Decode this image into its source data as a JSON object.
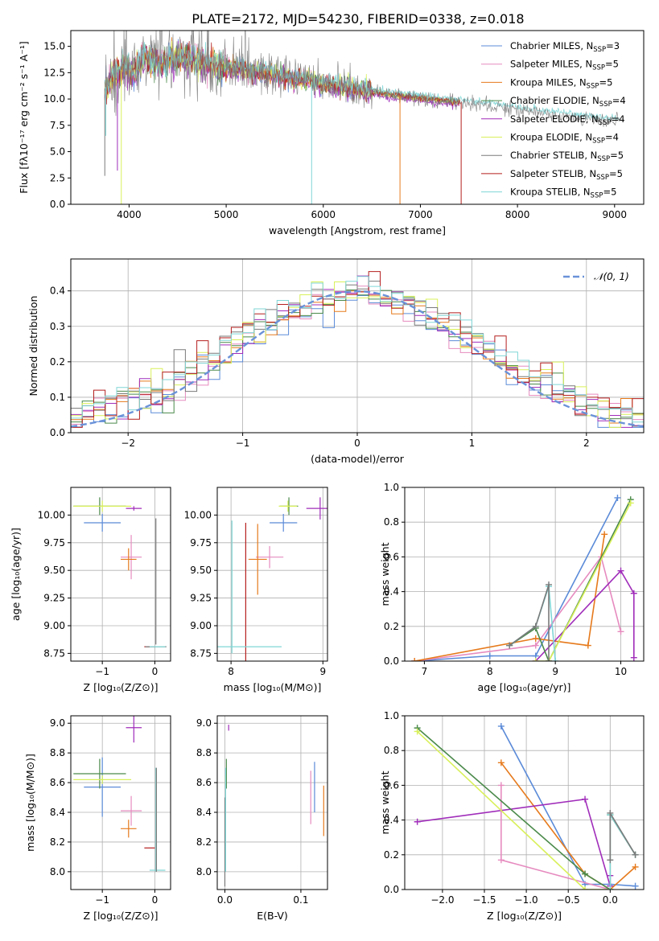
{
  "figure": {
    "title": "PLATE=2172, MJD=54230, FIBERID=0338, z=0.018"
  },
  "colors": {
    "cm": "#5b8bd8",
    "sm": "#e68bbf",
    "km": "#e67a1c",
    "ce": "#4b8a4b",
    "se": "#a02dba",
    "ke": "#d9f05a",
    "cs": "#7a7a7a",
    "ss": "#b51f1f",
    "ks": "#80d6d6",
    "normal": "#6a92d8",
    "grid": "#b0b0b0"
  },
  "chart_data": [
    {
      "id": "spectrum",
      "type": "line",
      "xlabel": "wavelength [Angstrom, rest frame]",
      "ylabel": "Flux [fλ10⁻¹⁷ erg cm⁻² s⁻¹ A⁻¹]",
      "xlim": [
        3400,
        9300
      ],
      "ylim": [
        0,
        16.5
      ],
      "xticks": [
        "4000",
        "5000",
        "6000",
        "7000",
        "8000",
        "9000"
      ],
      "yticks": [
        "0.0",
        "2.5",
        "5.0",
        "7.5",
        "10.0",
        "12.5",
        "15.0"
      ],
      "legend": "top-right",
      "legend_entries": [
        {
          "key": "cm",
          "label": "Chabrier MILES, N",
          "sub": "SSP",
          "suffix": "=3"
        },
        {
          "key": "sm",
          "label": "Salpeter MILES, N",
          "sub": "SSP",
          "suffix": "=5"
        },
        {
          "key": "km",
          "label": "Kroupa MILES, N",
          "sub": "SSP",
          "suffix": "=5"
        },
        {
          "key": "ce",
          "label": "Chabrier ELODIE, N",
          "sub": "SSP",
          "suffix": "=4"
        },
        {
          "key": "se",
          "label": "Salpeter ELODIE, N",
          "sub": "SSP",
          "suffix": "=4"
        },
        {
          "key": "ke",
          "label": "Kroupa ELODIE, N",
          "sub": "SSP",
          "suffix": "=4"
        },
        {
          "key": "cs",
          "label": "Chabrier STELIB, N",
          "sub": "SSP",
          "suffix": "=5"
        },
        {
          "key": "ss",
          "label": "Salpeter STELIB, N",
          "sub": "SSP",
          "suffix": "=5"
        },
        {
          "key": "ks",
          "label": "Kroupa STELIB, N",
          "sub": "SSP",
          "suffix": "=5"
        }
      ],
      "continuum": [
        [
          3750,
          11.0
        ],
        [
          3850,
          12.3
        ],
        [
          3950,
          13.0
        ],
        [
          4050,
          12.6
        ],
        [
          4150,
          13.9
        ],
        [
          4300,
          13.4
        ],
        [
          4500,
          13.9
        ],
        [
          4700,
          13.6
        ],
        [
          4900,
          13.2
        ],
        [
          5100,
          12.9
        ],
        [
          5300,
          12.6
        ],
        [
          5500,
          12.3
        ],
        [
          5700,
          11.9
        ],
        [
          5900,
          11.6
        ],
        [
          6100,
          11.3
        ],
        [
          6300,
          11.0
        ],
        [
          6500,
          10.7
        ],
        [
          6700,
          10.4
        ],
        [
          6900,
          10.2
        ],
        [
          7100,
          10.0
        ],
        [
          7300,
          9.8
        ],
        [
          7500,
          9.6
        ],
        [
          7700,
          9.35
        ],
        [
          7900,
          9.1
        ],
        [
          8100,
          8.85
        ],
        [
          8300,
          8.6
        ],
        [
          8500,
          8.35
        ],
        [
          8700,
          8.15
        ],
        [
          8900,
          7.95
        ],
        [
          9050,
          7.8
        ]
      ],
      "drop_lines": [
        {
          "key": "cs",
          "x": 3750,
          "ymin": 2.7
        },
        {
          "key": "ks",
          "x": 3760,
          "ymin": 6.5
        },
        {
          "key": "se",
          "x": 3880,
          "ymin": 3.2
        },
        {
          "key": "ke",
          "x": 3920,
          "ymin": 0
        },
        {
          "key": "ks",
          "x": 5880,
          "ymin": 0
        },
        {
          "key": "km",
          "x": 6790,
          "ymin": 0
        },
        {
          "key": "ss",
          "x": 7420,
          "ymin": 0
        }
      ]
    },
    {
      "id": "residual_hist",
      "type": "histogram",
      "xlabel": "(data-model)/error",
      "ylabel": "Normed distribution",
      "xlim": [
        -2.5,
        2.5
      ],
      "ylim": [
        0,
        0.49
      ],
      "xticks": [
        "−2",
        "−1",
        "0",
        "1",
        "2"
      ],
      "yticks": [
        "0.0",
        "0.1",
        "0.2",
        "0.3",
        "0.4"
      ],
      "legend": "top-right",
      "legend_label": "𝒩(0, 1)",
      "bin_width": 0.1,
      "series_keys": [
        "cm",
        "sm",
        "km",
        "ce",
        "se",
        "ke",
        "cs",
        "ss",
        "ks"
      ]
    },
    {
      "id": "age_vs_Z",
      "type": "errorbar",
      "xlabel": "Z [log₁₀(Z/Z⊙)]",
      "ylabel": "age  [log₁₀(age/yr)]",
      "xlim": [
        -1.6,
        0.3
      ],
      "ylim": [
        8.68,
        10.25
      ],
      "xticks": [
        "−1",
        "0"
      ],
      "xtick_values": [
        -1,
        0
      ],
      "yticks": [
        "8.75",
        "9.00",
        "9.25",
        "9.50",
        "9.75",
        "10.00"
      ],
      "ytick_values": [
        8.75,
        9.0,
        9.25,
        9.5,
        9.75,
        10.0
      ],
      "points": [
        {
          "key": "cm",
          "x": -1.0,
          "y": 9.93,
          "xerr": 0.35,
          "yerr": 0.08
        },
        {
          "key": "ce",
          "x": -1.05,
          "y": 10.08,
          "xerr": 0.5,
          "yerr": 0.08
        },
        {
          "key": "ke",
          "x": -1.0,
          "y": 10.08,
          "xerr": 0.55,
          "yerr": 0.05
        },
        {
          "key": "se",
          "x": -0.4,
          "y": 10.06,
          "xerr": 0.15,
          "yerr": 0.02
        },
        {
          "key": "sm",
          "x": -0.45,
          "y": 9.62,
          "xerr": 0.2,
          "yerr": 0.2
        },
        {
          "key": "km",
          "x": -0.5,
          "y": 9.6,
          "xerr": 0.15,
          "yerr": 0.1
        },
        {
          "key": "ss",
          "x": -0.1,
          "y": 8.81,
          "xerr": 0.1,
          "yerr": 0.0
        },
        {
          "key": "cs",
          "x": 0.02,
          "y": 8.81,
          "xerr": 0.2,
          "yerr": 0.0
        },
        {
          "key": "ks",
          "x": 0.05,
          "y": 8.81,
          "xerr": 0.15,
          "yerr": 0.0
        },
        {
          "key": "cs",
          "x": 0.02,
          "y": 9.4,
          "xerr": 0.0,
          "yerr": 0.57
        }
      ]
    },
    {
      "id": "age_vs_mass",
      "type": "errorbar",
      "xlabel": "mass [log₁₀(M/M⊙)]",
      "ylabel": "",
      "xlim": [
        7.85,
        9.05
      ],
      "ylim": [
        8.68,
        10.25
      ],
      "xticks": [
        "8",
        "9"
      ],
      "xtick_values": [
        8,
        9
      ],
      "yticks": [
        "8.75",
        "9.00",
        "9.25",
        "9.50",
        "9.75",
        "10.00"
      ],
      "ytick_values": [
        8.75,
        9.0,
        9.25,
        9.5,
        9.75,
        10.0
      ],
      "points": [
        {
          "key": "cm",
          "x": 8.57,
          "y": 9.93,
          "xerr": 0.15,
          "yerr": 0.08
        },
        {
          "key": "ce",
          "x": 8.63,
          "y": 10.08,
          "xerr": 0.1,
          "yerr": 0.08
        },
        {
          "key": "ke",
          "x": 8.62,
          "y": 10.08,
          "xerr": 0.1,
          "yerr": 0.05
        },
        {
          "key": "se",
          "x": 8.97,
          "y": 10.06,
          "xerr": 0.15,
          "yerr": 0.1
        },
        {
          "key": "sm",
          "x": 8.42,
          "y": 9.62,
          "xerr": 0.15,
          "yerr": 0.1
        },
        {
          "key": "km",
          "x": 8.29,
          "y": 9.6,
          "xerr": 0.1,
          "yerr": 0.32
        },
        {
          "key": "ss",
          "x": 8.16,
          "y": 9.3,
          "xerr": 0.0,
          "yerr": 0.63
        },
        {
          "key": "cs",
          "x": 8.01,
          "y": 8.81,
          "xerr": 0.0,
          "yerr": 0.0
        },
        {
          "key": "ks",
          "x": 8.0,
          "y": 8.81,
          "xerr": 0.55,
          "yerr": 0.0
        },
        {
          "key": "ks",
          "x": 8.01,
          "y": 9.35,
          "xerr": 0.0,
          "yerr": 0.6
        }
      ]
    },
    {
      "id": "weight_vs_age",
      "type": "line",
      "xlabel": "age  [log₁₀(age/yr)]",
      "ylabel": "mass weight",
      "xlim": [
        6.7,
        10.35
      ],
      "ylim": [
        0,
        1.0
      ],
      "xticks": [
        "7",
        "8",
        "9",
        "10"
      ],
      "xtick_values": [
        7,
        8,
        9,
        10
      ],
      "yticks": [
        "0.0",
        "0.2",
        "0.4",
        "0.6",
        "0.8",
        "1.0"
      ],
      "ytick_values": [
        0,
        0.2,
        0.4,
        0.6,
        0.8,
        1.0
      ],
      "series": [
        {
          "key": "cm",
          "x": [
            6.85,
            8.0,
            8.7,
            9.95
          ],
          "y": [
            0.0,
            0.03,
            0.03,
            0.94
          ]
        },
        {
          "key": "sm",
          "x": [
            6.85,
            8.7,
            9.7,
            10.0
          ],
          "y": [
            0.0,
            0.09,
            0.6,
            0.17
          ]
        },
        {
          "key": "km",
          "x": [
            6.85,
            8.7,
            9.5,
            9.75
          ],
          "y": [
            0.0,
            0.13,
            0.09,
            0.73
          ]
        },
        {
          "key": "se",
          "x": [
            8.7,
            10.0,
            10.2,
            10.2
          ],
          "y": [
            0.0,
            0.52,
            0.39,
            0.02
          ]
        },
        {
          "key": "ce",
          "x": [
            8.3,
            8.7,
            8.9,
            10.15
          ],
          "y": [
            0.09,
            0.19,
            0.0,
            0.93
          ]
        },
        {
          "key": "ke",
          "x": [
            8.7,
            8.9,
            10.15
          ],
          "y": [
            0.0,
            0.0,
            0.91
          ]
        },
        {
          "key": "ks",
          "x": [
            8.3,
            8.7,
            8.9,
            9.0
          ],
          "y": [
            0.09,
            0.2,
            0.43,
            0.0
          ]
        },
        {
          "key": "cs",
          "x": [
            8.3,
            8.7,
            8.9,
            8.9
          ],
          "y": [
            0.09,
            0.2,
            0.44,
            0.0
          ]
        }
      ]
    },
    {
      "id": "mass_vs_Z",
      "type": "errorbar",
      "xlabel": "Z [log₁₀(Z/Z⊙)]",
      "ylabel": "mass [log₁₀(M/M⊙)]",
      "xlim": [
        -1.6,
        0.3
      ],
      "ylim": [
        7.88,
        9.05
      ],
      "xticks": [
        "−1",
        "0"
      ],
      "xtick_values": [
        -1,
        0
      ],
      "yticks": [
        "8.0",
        "8.2",
        "8.4",
        "8.6",
        "8.8",
        "9.0"
      ],
      "ytick_values": [
        8.0,
        8.2,
        8.4,
        8.6,
        8.8,
        9.0
      ],
      "points": [
        {
          "key": "cm",
          "x": -1.0,
          "y": 8.57,
          "xerr": 0.35,
          "yerr": 0.2
        },
        {
          "key": "ce",
          "x": -1.05,
          "y": 8.66,
          "xerr": 0.5,
          "yerr": 0.1
        },
        {
          "key": "ke",
          "x": -1.0,
          "y": 8.62,
          "xerr": 0.55,
          "yerr": 0.03
        },
        {
          "key": "se",
          "x": -0.4,
          "y": 8.97,
          "xerr": 0.15,
          "yerr": 0.1
        },
        {
          "key": "sm",
          "x": -0.45,
          "y": 8.41,
          "xerr": 0.2,
          "yerr": 0.1
        },
        {
          "key": "km",
          "x": -0.5,
          "y": 8.29,
          "xerr": 0.15,
          "yerr": 0.06
        },
        {
          "key": "ss",
          "x": -0.1,
          "y": 8.16,
          "xerr": 0.1,
          "yerr": 0.0
        },
        {
          "key": "ks",
          "x": 0.05,
          "y": 8.01,
          "xerr": 0.15,
          "yerr": 0.0
        },
        {
          "key": "ks",
          "x": 0.02,
          "y": 8.35,
          "xerr": 0.0,
          "yerr": 0.35
        },
        {
          "key": "cs",
          "x": 0.03,
          "y": 8.35,
          "xerr": 0.0,
          "yerr": 0.35
        }
      ]
    },
    {
      "id": "mass_vs_ebv",
      "type": "errorbar",
      "xlabel": "E(B-V)",
      "ylabel": "",
      "xlim": [
        -0.01,
        0.135
      ],
      "ylim": [
        7.88,
        9.05
      ],
      "xticks": [
        "0.0",
        "0.1"
      ],
      "xtick_values": [
        0.0,
        0.1
      ],
      "yticks": [
        "8.0",
        "8.2",
        "8.4",
        "8.6",
        "8.8",
        "9.0"
      ],
      "ytick_values": [
        8.0,
        8.2,
        8.4,
        8.6,
        8.8,
        9.0
      ],
      "points": [
        {
          "key": "se",
          "x": 0.005,
          "y": 8.97,
          "xerr": 0.0,
          "yerr": 0.02
        },
        {
          "key": "ce",
          "x": 0.002,
          "y": 8.66,
          "xerr": 0.0,
          "yerr": 0.1
        },
        {
          "key": "ke",
          "x": 0.001,
          "y": 8.62,
          "xerr": 0.0,
          "yerr": 0.03
        },
        {
          "key": "cs",
          "x": 0.0,
          "y": 8.2,
          "xerr": 0.0,
          "yerr": 0.3
        },
        {
          "key": "ks",
          "x": 0.001,
          "y": 8.35,
          "xerr": 0.0,
          "yerr": 0.35
        },
        {
          "key": "sm",
          "x": 0.113,
          "y": 8.5,
          "xerr": 0.0,
          "yerr": 0.18
        },
        {
          "key": "cm",
          "x": 0.118,
          "y": 8.57,
          "xerr": 0.0,
          "yerr": 0.17
        },
        {
          "key": "km",
          "x": 0.13,
          "y": 8.41,
          "xerr": 0.0,
          "yerr": 0.17
        }
      ]
    },
    {
      "id": "weight_vs_Z",
      "type": "line",
      "xlabel": "Z [log₁₀(Z/Z⊙)]",
      "ylabel": "mass weight",
      "xlim": [
        -2.45,
        0.4
      ],
      "ylim": [
        0,
        1.0
      ],
      "xticks": [
        "−2.0",
        "−1.5",
        "−1.0",
        "−0.5",
        "0.0"
      ],
      "xtick_values": [
        -2.0,
        -1.5,
        -1.0,
        -0.5,
        0.0
      ],
      "yticks": [
        "0.0",
        "0.2",
        "0.4",
        "0.6",
        "0.8",
        "1.0"
      ],
      "ytick_values": [
        0,
        0.2,
        0.4,
        0.6,
        0.8,
        1.0
      ],
      "series": [
        {
          "key": "cm",
          "x": [
            -1.3,
            -0.3,
            0.0,
            0.3
          ],
          "y": [
            0.94,
            0.03,
            0.03,
            0.02
          ]
        },
        {
          "key": "sm",
          "x": [
            -1.3,
            -1.3,
            0.0
          ],
          "y": [
            0.6,
            0.17,
            0.0
          ]
        },
        {
          "key": "km",
          "x": [
            -1.3,
            -0.3,
            0.0,
            0.3
          ],
          "y": [
            0.73,
            0.09,
            0.0,
            0.13
          ]
        },
        {
          "key": "se",
          "x": [
            -2.3,
            -0.3,
            0.0,
            0.0
          ],
          "y": [
            0.39,
            0.52,
            0.02,
            0.08
          ]
        },
        {
          "key": "ce",
          "x": [
            -2.3,
            -0.3,
            0.0,
            0.0,
            0.3
          ],
          "y": [
            0.93,
            0.09,
            0.0,
            0.43,
            0.2
          ]
        },
        {
          "key": "ke",
          "x": [
            -2.3,
            -0.3,
            0.0
          ],
          "y": [
            0.91,
            0.0,
            0.0
          ]
        },
        {
          "key": "ks",
          "x": [
            0.0,
            0.0,
            0.3
          ],
          "y": [
            0.0,
            0.43,
            0.2
          ]
        },
        {
          "key": "cs",
          "x": [
            0.0,
            0.0,
            0.3
          ],
          "y": [
            0.17,
            0.44,
            0.2
          ]
        }
      ]
    }
  ]
}
